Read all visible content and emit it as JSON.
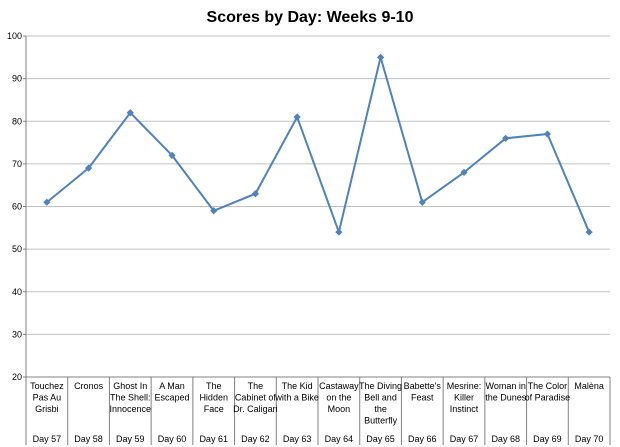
{
  "chart_data": {
    "type": "line",
    "title": "Scores by Day: Weeks 9-10",
    "xlabel": "",
    "ylabel": "",
    "ylim": [
      20,
      100
    ],
    "yticks": [
      20,
      30,
      40,
      50,
      60,
      70,
      80,
      90,
      100
    ],
    "grid": "horizontal",
    "legend": "none",
    "colors": {
      "line": "#4f81bd",
      "marker": "#4f81bd",
      "grid": "#c0c0c0",
      "axis": "#808080"
    },
    "marker": "diamond",
    "categories": [
      {
        "title": [
          "Touchez",
          "Pas Au",
          "Grisbi"
        ],
        "day": "Day 57"
      },
      {
        "title": [
          "Cronos"
        ],
        "day": "Day 58"
      },
      {
        "title": [
          "Ghost In",
          "The Shell:",
          "Innocence"
        ],
        "day": "Day 59"
      },
      {
        "title": [
          "A Man",
          "Escaped"
        ],
        "day": "Day 60"
      },
      {
        "title": [
          "The",
          "Hidden",
          "Face"
        ],
        "day": "Day 61"
      },
      {
        "title": [
          "The",
          "Cabinet of",
          "Dr. Caligari"
        ],
        "day": "Day 62"
      },
      {
        "title": [
          "The Kid",
          "with a Bike"
        ],
        "day": "Day 63"
      },
      {
        "title": [
          "Castaway",
          "on the",
          "Moon"
        ],
        "day": "Day 64"
      },
      {
        "title": [
          "The Diving",
          "Bell and",
          "the",
          "Butterfly"
        ],
        "day": "Day 65"
      },
      {
        "title": [
          "Babette's",
          "Feast"
        ],
        "day": "Day 66"
      },
      {
        "title": [
          "Mesrine:",
          "Killer",
          "Instinct"
        ],
        "day": "Day 67"
      },
      {
        "title": [
          "Woman in",
          "the Dunes"
        ],
        "day": "Day 68"
      },
      {
        "title": [
          "The Color",
          "of Paradise"
        ],
        "day": "Day 69"
      },
      {
        "title": [
          "Malèna"
        ],
        "day": "Day 70"
      }
    ],
    "series": [
      {
        "values": [
          61,
          69,
          82,
          72,
          59,
          63,
          81,
          54,
          95,
          61,
          68,
          76,
          77,
          54
        ]
      }
    ]
  }
}
